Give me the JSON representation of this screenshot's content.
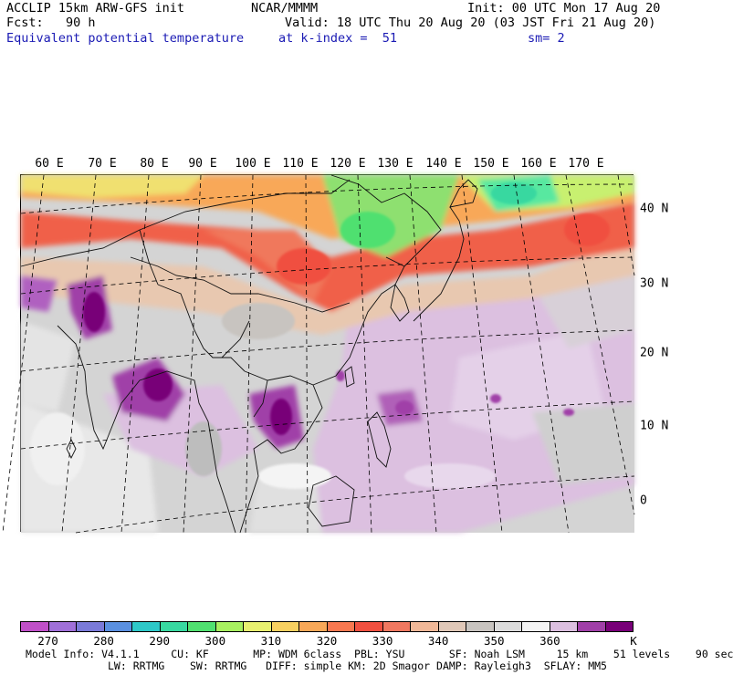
{
  "header": {
    "model_title": "ACCLIP 15km ARW-GFS init",
    "center": "NCAR/MMMM",
    "init": "Init: 00 UTC Mon 17 Aug 20",
    "forecast": "Fcst:   90 h",
    "valid": "Valid: 18 UTC Thu 20 Aug 20 (03 JST Fri 21 Aug 20)",
    "field_name": "Equivalent potential temperature",
    "level": "at k-index =  51",
    "smoothing": "sm= 2"
  },
  "map": {
    "longitude_labels": [
      "60 E",
      "70 E",
      "80 E",
      "90 E",
      "100 E",
      "110 E",
      "120 E",
      "130 E",
      "140 E",
      "150 E",
      "160 E",
      "170 E"
    ],
    "latitude_labels": [
      "40 N",
      "30 N",
      "20 N",
      "10 N",
      "0"
    ],
    "colors": {
      "c270": "#c050c8",
      "c275": "#a070d8",
      "c280": "#7a7ad8",
      "c285": "#5a90e0",
      "c290": "#2ec8c8",
      "c295": "#38d8a0",
      "c300": "#50e070",
      "c305": "#a8f060",
      "c310": "#e8f070",
      "c315": "#f8d060",
      "c320": "#f8a858",
      "c325": "#f87850",
      "c330": "#f05040",
      "c335": "#f07860",
      "c340": "#f0b898",
      "c345": "#e0c8b8",
      "c350": "#c8c4c0",
      "c355": "#dcdcdc",
      "c360": "#f4f4f4",
      "c365": "#dcc0e0",
      "c370": "#a040a8",
      "c375": "#780078"
    }
  },
  "colorbar": {
    "unit": "K",
    "tick_labels": [
      "270",
      "280",
      "290",
      "300",
      "310",
      "320",
      "330",
      "340",
      "350",
      "360"
    ],
    "colors": [
      "#c050c8",
      "#a070d8",
      "#7a7ad8",
      "#5a90e0",
      "#2ec8c8",
      "#38d8a0",
      "#50e070",
      "#a8f060",
      "#e8f070",
      "#f8d060",
      "#f8a858",
      "#f87850",
      "#f05040",
      "#f07860",
      "#f0b898",
      "#e0c8b8",
      "#c8c4c0",
      "#dcdcdc",
      "#f4f4f4",
      "#dcc0e0",
      "#a040a8",
      "#780078"
    ]
  },
  "footer": {
    "line1": "Model Info: V4.1.1     CU: KF       MP: WDM 6class  PBL: YSU       SF: Noah LSM     15 km    51 levels    90 sec",
    "line2": "             LW: RRTMG    SW: RRTMG   DIFF: simple KM: 2D Smagor DAMP: Rayleigh3  SFLAY: MM5"
  }
}
